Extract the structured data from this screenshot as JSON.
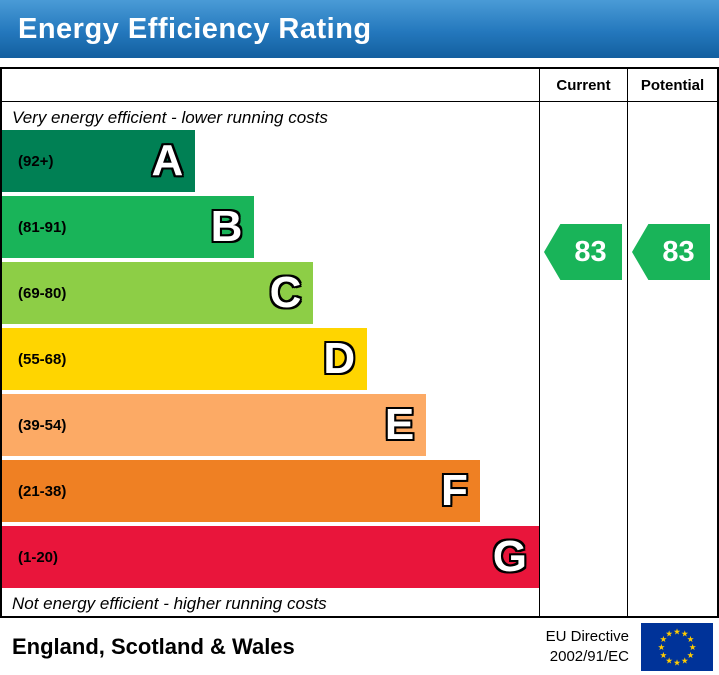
{
  "header": {
    "title": "Energy Efficiency Rating",
    "bar_color_top": "#4a9bd6",
    "bar_color_bottom": "#135f9f",
    "text_color": "#ffffff"
  },
  "columns": {
    "current": "Current",
    "potential": "Potential"
  },
  "chart": {
    "top_note": "Very energy efficient - lower running costs",
    "bottom_note": "Not energy efficient - higher running costs",
    "bands": [
      {
        "letter": "A",
        "range": "(92+)",
        "color": "#008054",
        "width_pct": 36
      },
      {
        "letter": "B",
        "range": "(81-91)",
        "color": "#19b459",
        "width_pct": 47
      },
      {
        "letter": "C",
        "range": "(69-80)",
        "color": "#8dce46",
        "width_pct": 58
      },
      {
        "letter": "D",
        "range": "(55-68)",
        "color": "#ffd500",
        "width_pct": 68
      },
      {
        "letter": "E",
        "range": "(39-54)",
        "color": "#fcaa65",
        "width_pct": 79
      },
      {
        "letter": "F",
        "range": "(21-38)",
        "color": "#ef8023",
        "width_pct": 89
      },
      {
        "letter": "G",
        "range": "(1-20)",
        "color": "#e9153b",
        "width_pct": 100
      }
    ],
    "current": {
      "value": "83",
      "color": "#19b459"
    },
    "potential": {
      "value": "83",
      "color": "#19b459"
    }
  },
  "footer": {
    "region": "England, Scotland & Wales",
    "directive_line1": "EU Directive",
    "directive_line2": "2002/91/EC",
    "flag_bg": "#003399",
    "flag_star_color": "#ffcc00"
  },
  "chart_data": {
    "type": "bar",
    "title": "Energy Efficiency Rating",
    "categories": [
      "A (92+)",
      "B (81-91)",
      "C (69-80)",
      "D (55-68)",
      "E (39-54)",
      "F (21-38)",
      "G (1-20)"
    ],
    "values": [
      36,
      47,
      58,
      68,
      79,
      89,
      100
    ],
    "band_colors": [
      "#008054",
      "#19b459",
      "#8dce46",
      "#ffd500",
      "#fcaa65",
      "#ef8023",
      "#e9153b"
    ],
    "series": [
      {
        "name": "Current",
        "value": 83,
        "band": "B"
      },
      {
        "name": "Potential",
        "value": 83,
        "band": "B"
      }
    ],
    "annotations": [
      "Very energy efficient - lower running costs",
      "Not energy efficient - higher running costs"
    ],
    "xlabel": "",
    "ylabel": "",
    "legend_position": "none"
  }
}
